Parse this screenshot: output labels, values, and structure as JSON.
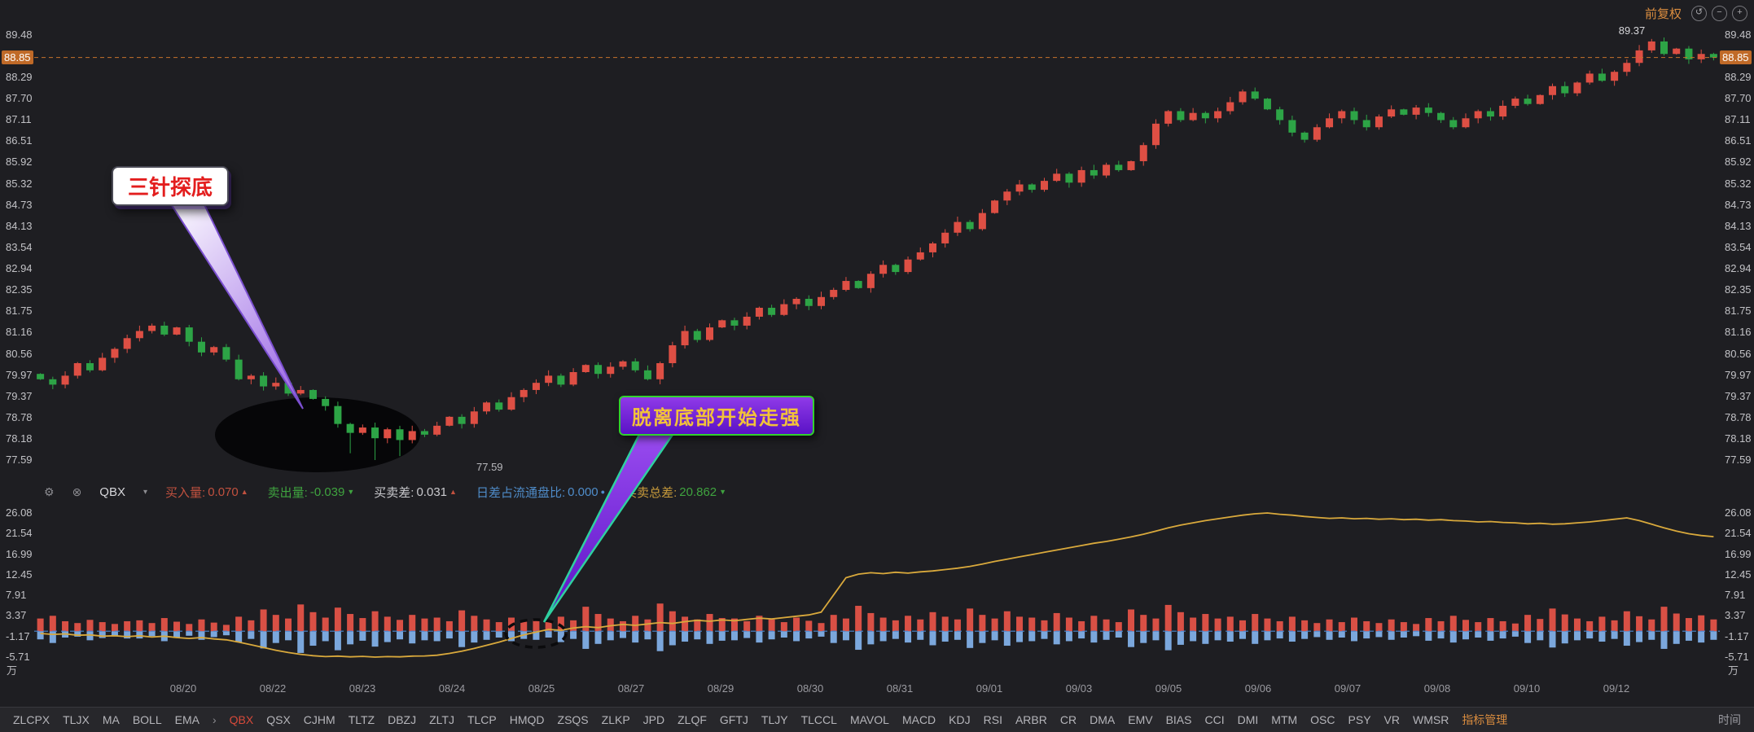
{
  "header": {
    "adjust_label": "前复权",
    "icons": [
      {
        "name": "refresh-icon",
        "glyph": "↺"
      },
      {
        "name": "zoom-out-icon",
        "glyph": "−"
      },
      {
        "name": "zoom-in-icon",
        "glyph": "+"
      }
    ]
  },
  "colors": {
    "up": "#de4f44",
    "down": "#2da446",
    "line": "#d9a93c",
    "bar_pos": "#d95045",
    "bar_neg": "#7ba7dc",
    "price_line": "#c8722c",
    "zero_line": "#4a86d0",
    "accent_orange": "#d98c3f",
    "active_red": "#d84a3a"
  },
  "main_axis": {
    "ticks": [
      "89.48",
      "88.85",
      "88.29",
      "87.70",
      "87.11",
      "86.51",
      "85.92",
      "85.32",
      "84.73",
      "84.13",
      "83.54",
      "82.94",
      "82.35",
      "81.75",
      "81.16",
      "80.56",
      "79.97",
      "79.37",
      "78.78",
      "78.18",
      "77.59"
    ],
    "current_index": 1,
    "current_price_label": "88.85"
  },
  "sub_axis": {
    "ticks": [
      "26.08",
      "21.54",
      "16.99",
      "12.45",
      "7.91",
      "3.37",
      "-1.17",
      "-5.71"
    ],
    "unit": "万"
  },
  "indicator_bar": {
    "name": "QBX",
    "stats": [
      {
        "label": "买入量",
        "value": "0.070",
        "mark": "▲",
        "label_color": "#c1513f",
        "value_color": "#c1513f",
        "mark_color": "#c1513f"
      },
      {
        "label": "卖出量",
        "value": "-0.039",
        "mark": "▼",
        "label_color": "#3fa33f",
        "value_color": "#3fa33f",
        "mark_color": "#3fa33f"
      },
      {
        "label": "买卖差",
        "value": "0.031",
        "mark": "▲",
        "label_color": "#c9c9cd",
        "value_color": "#c9c9cd",
        "mark_color": "#c1513f"
      },
      {
        "label": "日差占流通盘比",
        "value": "0.000",
        "mark": "●",
        "label_color": "#4f8cc9",
        "value_color": "#4f8cc9",
        "mark_color": "#4f8cc9"
      },
      {
        "label": "买卖总差",
        "value": "20.862",
        "mark": "▼",
        "label_color": "#c79a3b",
        "value_color": "#3fa33f",
        "mark_color": "#3fa33f"
      }
    ]
  },
  "annotations": {
    "callout1": {
      "text": "三针探底"
    },
    "callout2": {
      "text": "脱离底部开始走强"
    },
    "low_label": "77.59"
  },
  "dates": [
    "08/20",
    "08/22",
    "08/23",
    "08/24",
    "08/25",
    "08/27",
    "08/29",
    "08/30",
    "08/31",
    "09/01",
    "09/03",
    "09/05",
    "09/06",
    "09/07",
    "09/08",
    "09/10",
    "09/12"
  ],
  "toolbar": {
    "left_items": [
      "ZLCPX",
      "TLJX",
      "MA",
      "BOLL",
      "EMA"
    ],
    "arrow": "›",
    "items": [
      "QBX",
      "QSX",
      "CJHM",
      "TLTZ",
      "DBZJ",
      "ZLTJ",
      "TLCP",
      "HMQD",
      "ZSQS",
      "ZLKP",
      "JPD",
      "ZLQF",
      "GFTJ",
      "TLJY",
      "TLCCL",
      "MAVOL",
      "MACD",
      "KDJ",
      "RSI",
      "ARBR",
      "CR",
      "DMA",
      "EMV",
      "BIAS",
      "CCI",
      "DMI",
      "MTM",
      "OSC",
      "PSY",
      "VR",
      "WMSR"
    ],
    "active": "QBX",
    "manage_label": "指标管理",
    "right_label": "时间"
  },
  "chart_data": [
    {
      "type": "candlestick",
      "name": "price",
      "ylim": [
        77.59,
        89.48
      ],
      "open_first": 80.0,
      "current_price": 88.85,
      "closes": [
        79.85,
        79.7,
        79.95,
        80.3,
        80.1,
        80.45,
        80.7,
        81.0,
        81.2,
        81.35,
        81.1,
        81.3,
        80.9,
        80.6,
        80.75,
        80.4,
        79.85,
        79.95,
        79.65,
        79.75,
        79.45,
        79.55,
        79.3,
        79.1,
        78.6,
        78.35,
        78.5,
        78.2,
        78.45,
        78.15,
        78.4,
        78.3,
        78.55,
        78.8,
        78.6,
        78.95,
        79.2,
        79.0,
        79.35,
        79.55,
        79.75,
        79.95,
        79.7,
        80.05,
        80.25,
        80.0,
        80.2,
        80.35,
        80.1,
        79.85,
        80.3,
        80.8,
        81.2,
        80.95,
        81.3,
        81.5,
        81.35,
        81.6,
        81.85,
        81.65,
        81.95,
        82.1,
        81.9,
        82.15,
        82.35,
        82.6,
        82.4,
        82.8,
        83.05,
        82.85,
        83.2,
        83.4,
        83.65,
        83.95,
        84.25,
        84.05,
        84.5,
        84.85,
        85.1,
        85.3,
        85.15,
        85.4,
        85.6,
        85.35,
        85.7,
        85.55,
        85.85,
        85.7,
        85.95,
        86.4,
        87.0,
        87.35,
        87.1,
        87.3,
        87.15,
        87.35,
        87.6,
        87.9,
        87.7,
        87.4,
        87.1,
        86.75,
        86.55,
        86.9,
        87.15,
        87.35,
        87.1,
        86.9,
        87.2,
        87.4,
        87.25,
        87.45,
        87.3,
        87.1,
        86.9,
        87.15,
        87.35,
        87.2,
        87.5,
        87.7,
        87.55,
        87.8,
        88.05,
        87.85,
        88.15,
        88.4,
        88.2,
        88.45,
        88.7,
        89.05,
        89.3,
        88.95,
        89.1,
        88.8,
        88.95,
        88.85
      ],
      "needle_lows": [
        {
          "index": 25,
          "value": 77.78
        },
        {
          "index": 27,
          "value": 77.59
        },
        {
          "index": 29,
          "value": 77.7
        }
      ],
      "high_marker": {
        "index": 130,
        "value": 89.37,
        "label": "89.37"
      }
    },
    {
      "type": "bar+line",
      "name": "QBX",
      "ylim": [
        -5.71,
        26.08
      ],
      "last_line_value": 20.862,
      "red": [
        2.8,
        3.4,
        2.2,
        1.8,
        2.5,
        2.0,
        1.6,
        2.2,
        2.4,
        1.8,
        2.9,
        2.1,
        1.6,
        2.6,
        1.9,
        1.4,
        3.2,
        2.4,
        4.8,
        3.6,
        2.8,
        5.9,
        4.2,
        3.0,
        5.2,
        3.8,
        2.9,
        4.4,
        3.2,
        2.5,
        3.6,
        2.8,
        3.0,
        2.2,
        4.6,
        3.4,
        2.6,
        2.0,
        3.0,
        2.4,
        2.6,
        2.0,
        3.2,
        2.4,
        5.4,
        3.8,
        2.8,
        2.2,
        3.4,
        2.6,
        6.1,
        4.4,
        3.2,
        2.6,
        3.8,
        2.9,
        2.8,
        2.2,
        3.4,
        2.6,
        2.0,
        3.0,
        2.3,
        1.8,
        3.6,
        2.8,
        5.6,
        4.0,
        3.0,
        2.4,
        3.4,
        2.6,
        4.2,
        3.2,
        2.6,
        5.0,
        3.6,
        2.8,
        4.4,
        3.2,
        3.0,
        2.4,
        4.0,
        3.0,
        2.2,
        3.4,
        2.6,
        2.0,
        4.8,
        3.6,
        2.8,
        5.8,
        4.2,
        3.0,
        3.8,
        2.8,
        3.2,
        2.4,
        3.8,
        2.8,
        2.2,
        3.2,
        2.4,
        1.8,
        2.6,
        2.0,
        3.0,
        2.2,
        1.8,
        2.6,
        2.0,
        1.6,
        2.9,
        2.2,
        3.4,
        2.5,
        2.0,
        2.9,
        2.2,
        1.7,
        3.6,
        2.7,
        5.0,
        3.7,
        2.8,
        2.2,
        3.2,
        2.4,
        4.4,
        3.3,
        2.6,
        5.4,
        3.9,
        2.9,
        3.5,
        2.6
      ],
      "blue": [
        -1.8,
        -2.6,
        -1.4,
        -1.2,
        -2.0,
        -1.5,
        -1.0,
        -1.6,
        -1.6,
        -1.1,
        -2.2,
        -1.5,
        -1.0,
        -1.9,
        -1.3,
        -0.9,
        -2.4,
        -1.7,
        -3.8,
        -2.6,
        -2.0,
        -4.8,
        -3.2,
        -2.2,
        -4.2,
        -2.9,
        -2.1,
        -3.4,
        -2.4,
        -1.8,
        -2.7,
        -2.0,
        -2.2,
        -1.6,
        -3.5,
        -2.5,
        -1.9,
        -1.4,
        -2.2,
        -1.7,
        -1.9,
        -1.4,
        -2.4,
        -1.7,
        -3.9,
        -2.8,
        -2.0,
        -1.5,
        -2.5,
        -1.8,
        -4.4,
        -3.1,
        -2.3,
        -1.8,
        -2.8,
        -2.1,
        -2.0,
        -1.5,
        -2.5,
        -1.8,
        -1.4,
        -2.2,
        -1.6,
        -1.2,
        -2.6,
        -2.0,
        -4.1,
        -2.9,
        -2.2,
        -1.7,
        -2.5,
        -1.9,
        -3.1,
        -2.3,
        -1.9,
        -3.7,
        -2.6,
        -2.0,
        -3.2,
        -2.4,
        -2.2,
        -1.7,
        -2.9,
        -2.2,
        -1.6,
        -2.5,
        -1.9,
        -1.4,
        -3.5,
        -2.6,
        -2.0,
        -4.2,
        -3.0,
        -2.2,
        -2.8,
        -2.0,
        -2.3,
        -1.7,
        -2.8,
        -2.0,
        -1.6,
        -2.3,
        -1.7,
        -1.3,
        -1.9,
        -1.4,
        -2.2,
        -1.6,
        -1.3,
        -1.9,
        -1.4,
        -1.1,
        -2.1,
        -1.6,
        -2.5,
        -1.8,
        -1.4,
        -2.1,
        -1.6,
        -1.2,
        -2.6,
        -2.0,
        -3.6,
        -2.7,
        -2.0,
        -1.6,
        -2.3,
        -1.7,
        -3.2,
        -2.4,
        -1.9,
        -3.9,
        -2.8,
        -2.1,
        -2.5,
        -1.9
      ],
      "line": [
        -0.5,
        -0.7,
        -0.6,
        -0.9,
        -0.8,
        -1.1,
        -1.0,
        -1.2,
        -1.0,
        -1.3,
        -1.1,
        -1.4,
        -1.6,
        -1.4,
        -1.7,
        -1.9,
        -2.4,
        -3.0,
        -3.6,
        -4.2,
        -4.7,
        -5.1,
        -5.4,
        -5.6,
        -5.5,
        -5.65,
        -5.55,
        -5.71,
        -5.6,
        -5.65,
        -5.5,
        -5.45,
        -5.3,
        -4.9,
        -4.4,
        -3.8,
        -3.1,
        -2.4,
        -1.6,
        -0.8,
        -0.2,
        0.4,
        0.2,
        0.7,
        1.0,
        0.8,
        1.2,
        1.5,
        1.3,
        1.6,
        1.9,
        1.7,
        2.1,
        2.4,
        2.2,
        2.5,
        2.3,
        2.6,
        2.9,
        2.7,
        3.0,
        3.3,
        3.6,
        4.2,
        8.0,
        11.8,
        12.6,
        12.9,
        12.7,
        13.0,
        12.8,
        13.1,
        13.3,
        13.6,
        13.9,
        14.3,
        14.8,
        15.4,
        15.9,
        16.4,
        16.9,
        17.4,
        17.9,
        18.4,
        18.9,
        19.4,
        19.8,
        20.3,
        20.8,
        21.4,
        22.1,
        22.8,
        23.4,
        23.9,
        24.4,
        24.8,
        25.2,
        25.6,
        25.9,
        26.08,
        25.8,
        25.6,
        25.3,
        25.1,
        24.9,
        25.0,
        24.8,
        24.9,
        24.7,
        24.8,
        24.6,
        24.7,
        24.5,
        24.6,
        24.4,
        24.3,
        24.1,
        24.2,
        24.0,
        23.9,
        23.7,
        23.8,
        23.6,
        23.7,
        23.9,
        24.1,
        24.4,
        24.7,
        25.0,
        24.4,
        23.6,
        22.8,
        22.1,
        21.5,
        21.1,
        20.862
      ]
    }
  ]
}
